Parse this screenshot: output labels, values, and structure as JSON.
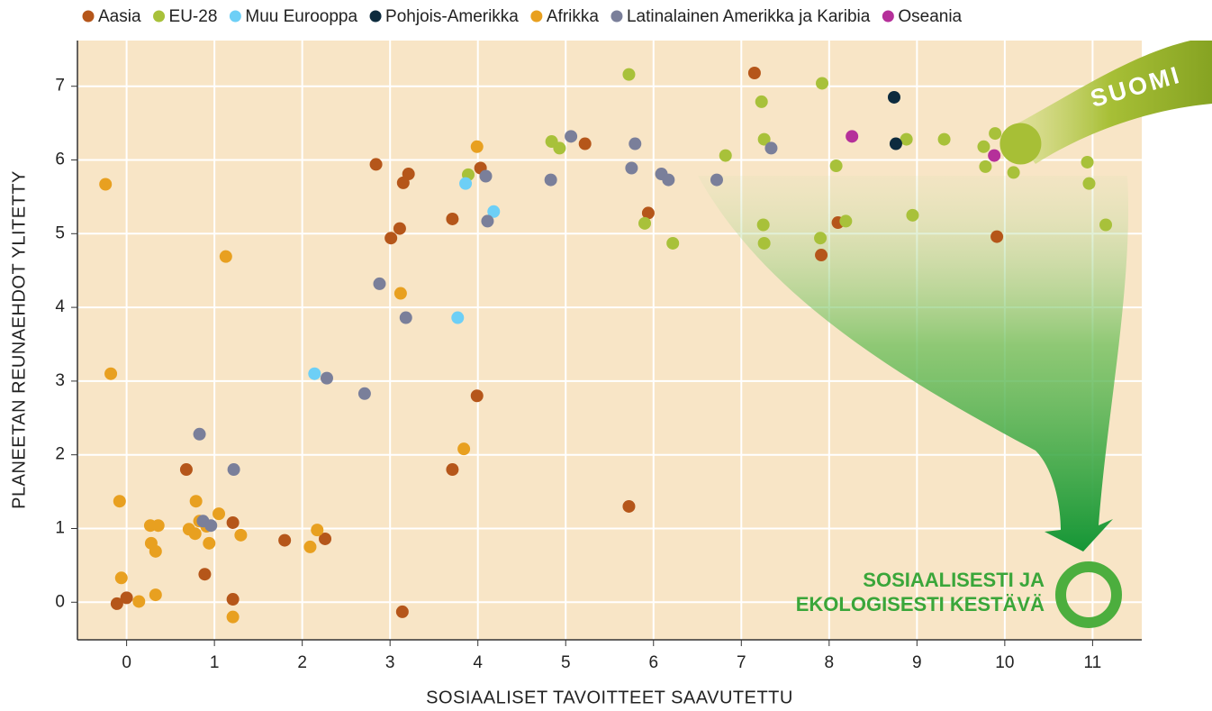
{
  "chart_data": {
    "type": "scatter",
    "x_label": "SOSIAALISET TAVOITTEET SAAVUTETTU",
    "y_label": "PLANEETAN REUNAEHDOT YLITETTY",
    "xlim": [
      -0.56,
      11.56
    ],
    "ylim": [
      -0.51,
      7.62
    ],
    "xticks": [
      0,
      1,
      2,
      3,
      4,
      5,
      6,
      7,
      8,
      9,
      10,
      11
    ],
    "yticks": [
      0,
      1,
      2,
      3,
      4,
      5,
      6,
      7
    ],
    "grid": true,
    "legend": "top",
    "highlight": {
      "label": "SUOMI",
      "x": 10.18,
      "y": 6.22,
      "color": "#a7bf36"
    },
    "goal_label": [
      "SOSIAALISESTI JA",
      "EKOLOGISESTI KESTÄVÄ"
    ],
    "series": [
      {
        "name": "Aasia",
        "color": "#b5561a",
        "x": [
          7.15,
          2.84,
          3.21,
          3.15,
          4.03,
          3.71,
          3.11,
          3.01,
          5.22,
          5.94,
          7.91,
          8.1,
          9.91,
          3.99,
          3.71,
          0.68,
          5.72,
          1.21,
          1.8,
          2.26,
          0.89,
          1.21,
          0,
          -0.11,
          3.14
        ],
        "values": [
          7.18,
          5.94,
          5.81,
          5.69,
          5.89,
          5.2,
          5.07,
          4.94,
          6.22,
          5.28,
          4.71,
          5.15,
          4.96,
          2.8,
          1.8,
          1.8,
          1.3,
          1.08,
          0.84,
          0.86,
          0.38,
          0.04,
          0.06,
          -0.02,
          -0.13
        ]
      },
      {
        "name": "EU-28",
        "color": "#a8c13a",
        "x": [
          5.72,
          7.92,
          7.23,
          4.84,
          4.93,
          7.26,
          6.82,
          8.88,
          9.31,
          9.89,
          9.76,
          9.78,
          10.1,
          8.08,
          10.94,
          10.96,
          11.15,
          8.95,
          7.25,
          8.19,
          5.9,
          6.22,
          7.26,
          7.9,
          3.89
        ],
        "values": [
          7.16,
          7.04,
          6.79,
          6.25,
          6.16,
          6.28,
          6.06,
          6.28,
          6.28,
          6.36,
          6.18,
          5.91,
          5.83,
          5.92,
          5.97,
          5.68,
          5.12,
          5.25,
          5.12,
          5.17,
          5.14,
          4.87,
          4.87,
          4.94,
          5.8
        ]
      },
      {
        "name": "Muu Eurooppa",
        "color": "#6dcff6",
        "x": [
          3.86,
          4.18,
          3.77,
          2.14
        ],
        "values": [
          5.68,
          5.3,
          3.86,
          3.1
        ]
      },
      {
        "name": "Pohjois-Amerikka",
        "color": "#0d2b3e",
        "x": [
          8.74,
          8.76
        ],
        "values": [
          6.85,
          6.22
        ]
      },
      {
        "name": "Afrikka",
        "color": "#e8a020",
        "x": [
          3.99,
          -0.24,
          1.13,
          3.12,
          -0.18,
          3.84,
          -0.08,
          0.79,
          0.27,
          0.36,
          1.05,
          0.71,
          0.78,
          0.83,
          0.91,
          0.94,
          1.3,
          0.28,
          0.33,
          2.17,
          2.09,
          -0.06,
          0.33,
          0.14,
          1.21
        ],
        "values": [
          6.18,
          5.67,
          4.69,
          4.19,
          3.1,
          2.08,
          1.37,
          1.37,
          1.04,
          1.04,
          1.2,
          0.99,
          0.93,
          1.1,
          1.03,
          0.8,
          0.91,
          0.8,
          0.69,
          0.98,
          0.75,
          0.33,
          0.1,
          0.01,
          -0.2
        ]
      },
      {
        "name": "Latinalainen Amerikka ja Karibia",
        "color": "#7a7f9a",
        "x": [
          5.06,
          5.79,
          5.75,
          6.09,
          6.17,
          6.72,
          7.34,
          4.83,
          4.09,
          4.11,
          2.88,
          3.18,
          2.28,
          2.71,
          0.83,
          1.22,
          0.87,
          0.96
        ],
        "values": [
          6.32,
          6.22,
          5.89,
          5.81,
          5.73,
          5.73,
          6.16,
          5.73,
          5.78,
          5.17,
          4.32,
          3.86,
          3.04,
          2.83,
          2.28,
          1.8,
          1.1,
          1.04
        ]
      },
      {
        "name": "Oseania",
        "color": "#b5309a",
        "x": [
          8.26,
          9.88
        ],
        "values": [
          6.32,
          6.06
        ]
      }
    ]
  }
}
